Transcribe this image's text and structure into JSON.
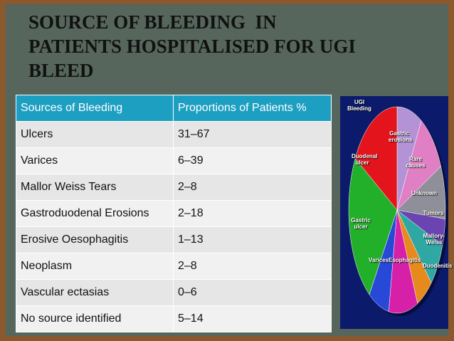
{
  "title_lines": [
    "SOURCE OF BLEEDING  IN",
    "PATIENTS HOSPITALISED FOR UGI",
    "BLEED"
  ],
  "table": {
    "header": [
      "Sources of Bleeding",
      "Proportions of Patients %"
    ],
    "rows": [
      [
        "Ulcers",
        "31–67"
      ],
      [
        "Varices",
        "6–39"
      ],
      [
        "Mallor Weiss Tears",
        "2–8"
      ],
      [
        "Gastroduodenal Erosions",
        "2–18"
      ],
      [
        "Erosive Oesophagitis",
        "1–13"
      ],
      [
        "Neoplasm",
        "2–8"
      ],
      [
        "Vascular ectasias",
        "0–6"
      ],
      [
        "No source identified",
        "5–14"
      ]
    ]
  },
  "pie": {
    "title": "UGI Bleeding",
    "labels": [
      "Gastric erosions",
      "Rare causes",
      "Unknown",
      "Tumors",
      "Mallory-Weiss",
      "Duodenitis",
      "Esophagitis",
      "Varices",
      "Gastric ulcer",
      "Duodenal ulcer"
    ]
  }
}
